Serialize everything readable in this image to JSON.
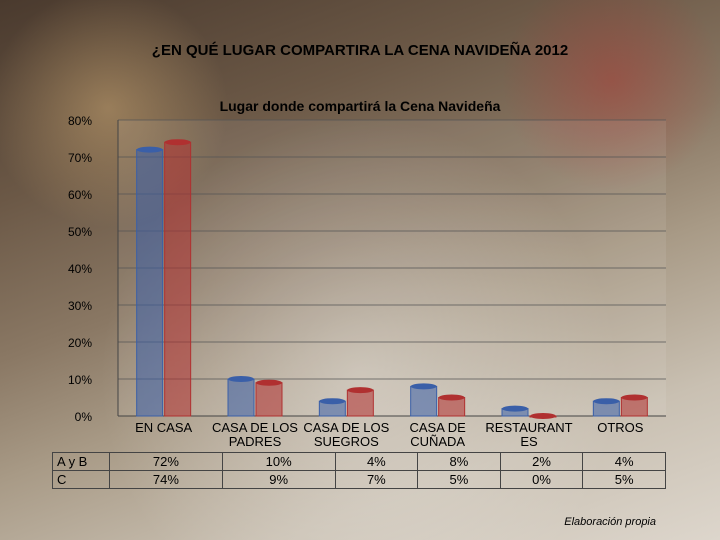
{
  "title": "¿EN QUÉ LUGAR COMPARTIRA LA CENA NAVIDEÑA 2012",
  "footer": "Elaboración propia",
  "chart_data": {
    "type": "bar",
    "title": "Lugar donde compartirá la Cena Navideña",
    "categories": [
      "EN CASA",
      "CASA DE LOS PADRES",
      "CASA DE LOS SUEGROS",
      "CASA DE CUÑADA",
      "RESTAURANTES",
      "OTROS"
    ],
    "series": [
      {
        "name": "A y B",
        "color": "#3a5fa8",
        "values": [
          72,
          10,
          4,
          8,
          2,
          4
        ],
        "labels": [
          "72%",
          "10%",
          "4%",
          "8%",
          "2%",
          "4%"
        ]
      },
      {
        "name": "C",
        "color": "#b03030",
        "values": [
          74,
          9,
          7,
          5,
          0,
          5
        ],
        "labels": [
          "74%",
          "9%",
          "7%",
          "5%",
          "0%",
          "5%"
        ]
      }
    ],
    "ylim": [
      0,
      80
    ],
    "yticks": [
      "0%",
      "10%",
      "20%",
      "30%",
      "40%",
      "50%",
      "60%",
      "70%",
      "80%"
    ],
    "xlabel": "",
    "ylabel": "",
    "grid": true
  }
}
